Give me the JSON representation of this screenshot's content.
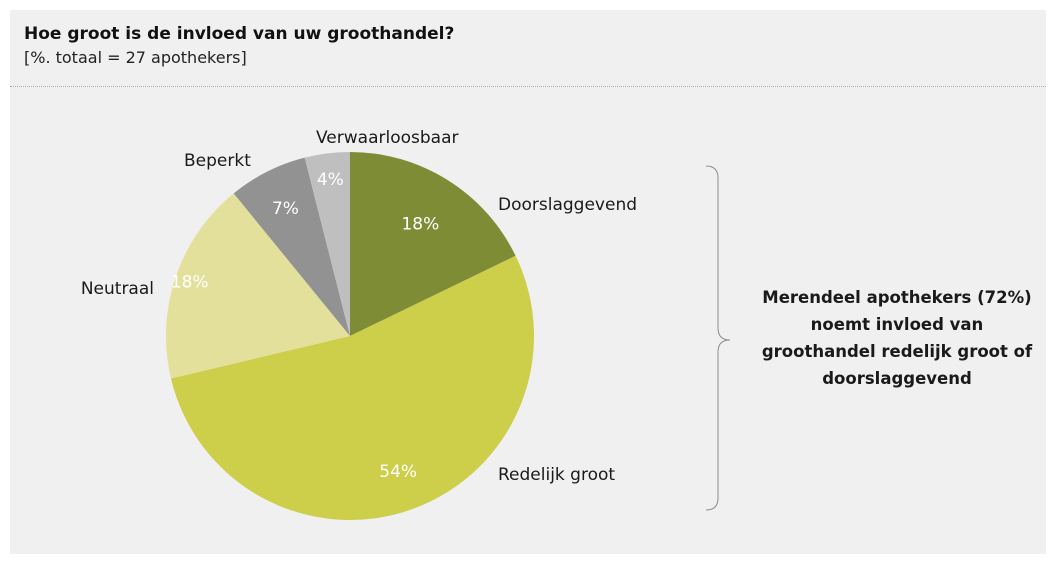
{
  "chart_data": {
    "type": "pie",
    "title": "Hoe groot is de invloed van uw groothandel?",
    "subtitle": "[%. totaal = 27 apothekers]",
    "slices": [
      {
        "label": "Doorslaggevend",
        "value": 18,
        "value_label": "18%",
        "color": "#7f8c36"
      },
      {
        "label": "Redelijk groot",
        "value": 54,
        "value_label": "54%",
        "color": "#cdce4a"
      },
      {
        "label": "Neutraal",
        "value": 18,
        "value_label": "18%",
        "color": "#e2e09a"
      },
      {
        "label": "Beperkt",
        "value": 7,
        "value_label": "7%",
        "color": "#929292"
      },
      {
        "label": "Verwaarloosbaar",
        "value": 4,
        "value_label": "4%",
        "color": "#bfbfbf"
      }
    ],
    "start": "12 o'clock",
    "direction": "clockwise"
  },
  "annotation": "Merendeel apothekers (72%) noemt invloed van groothandel redelijk groot of doorslaggevend"
}
